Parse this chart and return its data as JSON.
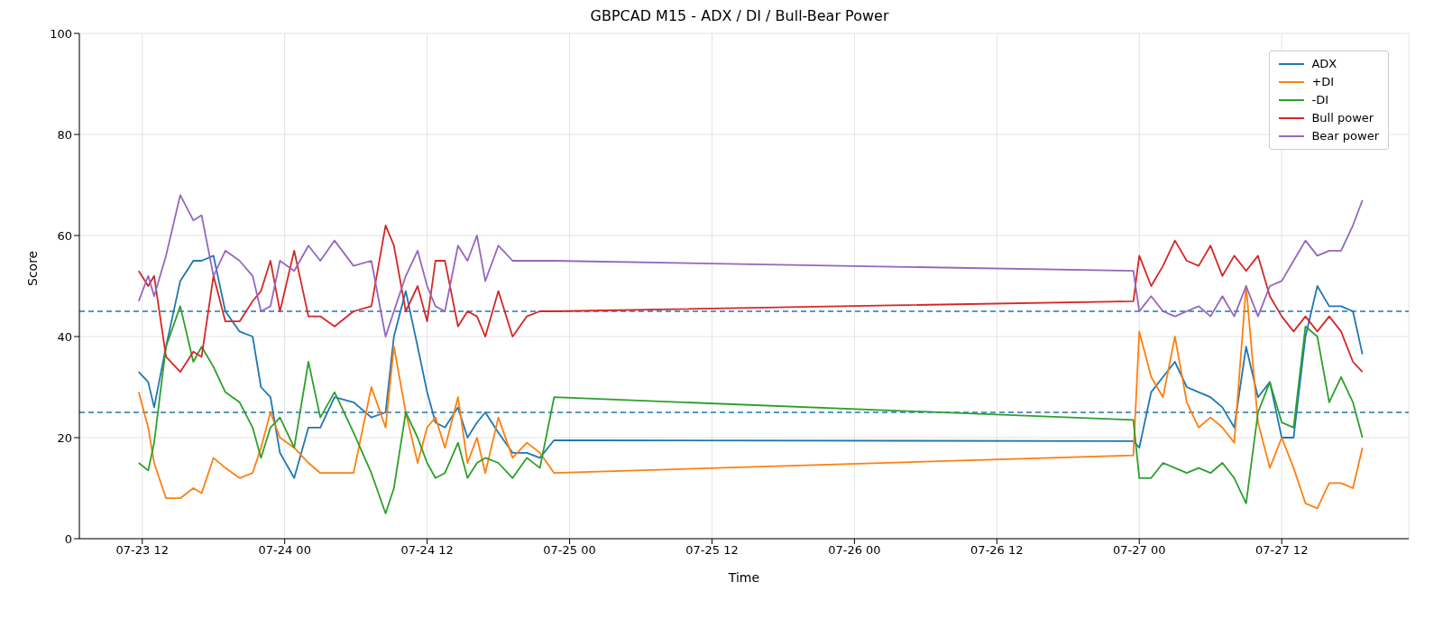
{
  "chart_data": {
    "type": "line",
    "title": "GBPCAD M15 - ADX / DI / Bull-Bear Power",
    "xlabel": "Time",
    "ylabel": "Score",
    "x": [
      "--07-23T11:42",
      "--07-23T12:30",
      "--07-23T13:00",
      "--07-23T14:00",
      "--07-23T15:12",
      "--07-23T16:18",
      "--07-23T17:00",
      "--07-23T18:00",
      "--07-23T19:00",
      "--07-23T20:12",
      "--07-23T21:18",
      "--07-23T22:00",
      "--07-23T22:48",
      "--07-23T23:36",
      "--07-24T00:48",
      "--07-24T02:00",
      "--07-24T03:00",
      "--07-24T04:12",
      "--07-24T05:48",
      "--07-24T07:18",
      "--07-24T08:30",
      "--07-24T09:12",
      "--07-24T10:12",
      "--07-24T11:12",
      "--07-24T12:00",
      "--07-24T12:42",
      "--07-24T13:30",
      "--07-24T14:36",
      "--07-24T15:24",
      "--07-24T16:12",
      "--07-24T16:54",
      "--07-24T18:00",
      "--07-24T19:12",
      "--07-24T20:24",
      "--07-24T21:30",
      "--07-24T22:42",
      "--07-26T23:30",
      "--07-27T00:00",
      "--07-27T01:00",
      "--07-27T02:00",
      "--07-27T03:00",
      "--07-27T04:00",
      "--07-27T05:00",
      "--07-27T06:00",
      "--07-27T07:00",
      "--07-27T08:00",
      "--07-27T09:00",
      "--07-27T10:00",
      "--07-27T11:00",
      "--07-27T12:00",
      "--07-27T13:00",
      "--07-27T14:00",
      "--07-27T15:00",
      "--07-27T16:00",
      "--07-27T17:00",
      "--07-27T18:00",
      "--07-27T18:48"
    ],
    "series": [
      {
        "name": "ADX",
        "color": "#1f77b4",
        "values": [
          33,
          31,
          26,
          38,
          51,
          55,
          55,
          56,
          45,
          41,
          40,
          30,
          28,
          17,
          12,
          22,
          22,
          28,
          27,
          24,
          25,
          40,
          49,
          38,
          29,
          23,
          22,
          26,
          20,
          23,
          25,
          21,
          17,
          17,
          16,
          19.5,
          19.3,
          18,
          29,
          32,
          35,
          30,
          29,
          28,
          26,
          22,
          38,
          28,
          31,
          20,
          20,
          40,
          50,
          46,
          46,
          45,
          36.5
        ]
      },
      {
        "name": "+DI",
        "color": "#ff7f0e",
        "values": [
          29,
          22,
          15,
          8,
          8,
          10,
          9,
          16,
          14,
          12,
          13,
          18,
          25,
          20,
          18,
          15,
          13,
          13,
          13,
          30,
          22,
          38,
          25,
          15,
          22,
          24,
          18,
          28,
          15,
          20,
          13,
          24,
          16,
          19,
          17,
          13,
          16.5,
          41,
          32,
          28,
          40,
          27,
          22,
          24,
          22,
          19,
          50,
          23,
          14,
          20,
          14,
          7,
          6,
          11,
          11,
          10,
          18
        ]
      },
      {
        "name": "-DI",
        "color": "#2ca02c",
        "values": [
          15,
          13.5,
          19,
          38,
          46,
          35,
          38,
          34,
          29,
          27,
          22,
          16,
          22,
          24,
          18,
          35,
          24,
          29,
          21,
          13,
          5,
          10,
          25,
          20,
          15,
          12,
          13,
          19,
          12,
          15,
          16,
          15,
          12,
          16,
          14,
          28,
          23.5,
          12,
          12,
          15,
          14,
          13,
          14,
          13,
          15,
          12,
          7,
          25,
          31,
          23,
          22,
          42,
          40,
          27,
          32,
          27,
          20
        ]
      },
      {
        "name": "Bull power",
        "color": "#d62728",
        "values": [
          53,
          50,
          52,
          36,
          33,
          37,
          36,
          52,
          43,
          43,
          47,
          49,
          55,
          45,
          57,
          44,
          44,
          42,
          45,
          46,
          62,
          58,
          45,
          50,
          43,
          55,
          55,
          42,
          45,
          44,
          40,
          49,
          40,
          44,
          45,
          45,
          47,
          56,
          50,
          54,
          59,
          55,
          54,
          58,
          52,
          56,
          53,
          56,
          48,
          44,
          41,
          44,
          41,
          44,
          41,
          35,
          33
        ]
      },
      {
        "name": "Bear power",
        "color": "#9467bd",
        "values": [
          47,
          52,
          48,
          56,
          68,
          63,
          64,
          52,
          57,
          55,
          52,
          45,
          46,
          55,
          53,
          58,
          55,
          59,
          54,
          55,
          40,
          45,
          52,
          57,
          50,
          46,
          45,
          58,
          55,
          60,
          51,
          58,
          55,
          55,
          55,
          55,
          53,
          45,
          48,
          45,
          44,
          45,
          46,
          44,
          48,
          44,
          50,
          44,
          50,
          51,
          55,
          59,
          56,
          57,
          57,
          62,
          67
        ]
      }
    ],
    "xlim": [
      "--07-23T06:42",
      "--07-27T22:42"
    ],
    "xticks": [
      {
        "value": "--07-23T12:00",
        "label": "07-23 12"
      },
      {
        "value": "--07-24T00:00",
        "label": "07-24 00"
      },
      {
        "value": "--07-24T12:00",
        "label": "07-24 12"
      },
      {
        "value": "--07-25T00:00",
        "label": "07-25 00"
      },
      {
        "value": "--07-25T12:00",
        "label": "07-25 12"
      },
      {
        "value": "--07-26T00:00",
        "label": "07-26 00"
      },
      {
        "value": "--07-26T12:00",
        "label": "07-26 12"
      },
      {
        "value": "--07-27T00:00",
        "label": "07-27 00"
      },
      {
        "value": "--07-27T12:00",
        "label": "07-27 12"
      }
    ],
    "ylim": [
      0,
      100
    ],
    "yticks": [
      0,
      20,
      40,
      60,
      80,
      100
    ],
    "ref_lines": [
      {
        "axis": "y",
        "value": 45,
        "color": "#1f77b4",
        "line_style": "dashed"
      },
      {
        "axis": "y",
        "value": 25,
        "color": "#1f77b4",
        "line_style": "dashed"
      }
    ],
    "grid": true,
    "legend": "top right",
    "marker": "none",
    "line_style": "solid"
  }
}
